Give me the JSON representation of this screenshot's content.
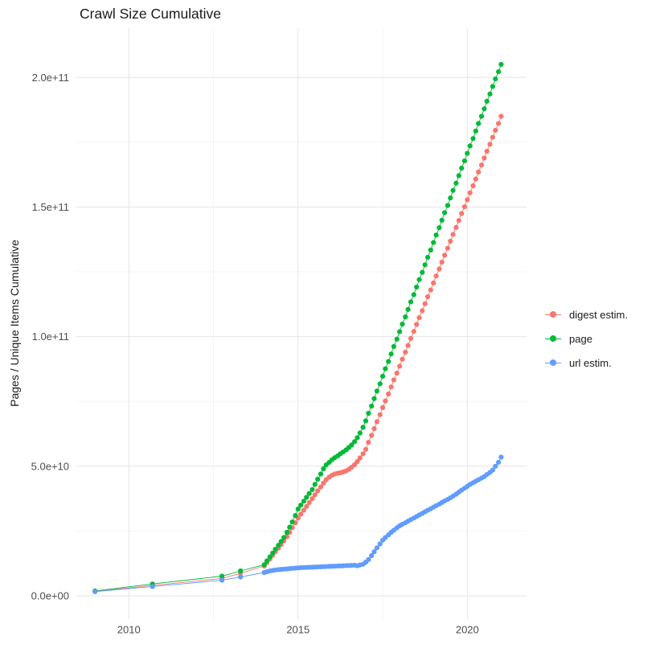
{
  "title": "Crawl Size Cumulative",
  "axes": {
    "y_label": "Pages / Unique Items Cumulative",
    "y_ticks": [
      "0.0e+00",
      "5.0e+10",
      "1.0e+11",
      "1.5e+11",
      "2.0e+11"
    ],
    "x_ticks": [
      "2010",
      "2015",
      "2020"
    ]
  },
  "legend": {
    "position": "right",
    "items": [
      {
        "label": "digest estim.",
        "color": "#F8766D"
      },
      {
        "label": "page",
        "color": "#00BA38"
      },
      {
        "label": "url estim.",
        "color": "#619CFF"
      }
    ]
  },
  "chart_data": {
    "type": "scatter",
    "title": "Crawl Size Cumulative",
    "xlabel": "",
    "ylabel": "Pages / Unique Items Cumulative",
    "y_unit": "values in billions (1e9) of pages / unique items",
    "xlim": [
      2008.45,
      2021.75
    ],
    "ylim": [
      -9,
      219
    ],
    "grid": {
      "x_major": [
        2010,
        2015,
        2020
      ],
      "x_minor": [
        2012.5,
        2017.5
      ],
      "y_major": [
        0,
        50,
        100,
        150,
        200
      ],
      "y_minor": [
        25,
        75,
        125,
        175
      ]
    },
    "x": [
      2009,
      2010.7,
      2012.75,
      2013.3,
      2014,
      2014.08,
      2014.17,
      2014.25,
      2014.33,
      2014.42,
      2014.5,
      2014.58,
      2014.67,
      2014.75,
      2014.83,
      2014.92,
      2015,
      2015.08,
      2015.17,
      2015.25,
      2015.33,
      2015.42,
      2015.5,
      2015.58,
      2015.67,
      2015.75,
      2015.83,
      2015.92,
      2016,
      2016.08,
      2016.17,
      2016.25,
      2016.33,
      2016.42,
      2016.5,
      2016.58,
      2016.67,
      2016.75,
      2016.83,
      2016.92,
      2017,
      2017.08,
      2017.17,
      2017.25,
      2017.33,
      2017.42,
      2017.5,
      2017.58,
      2017.67,
      2017.75,
      2017.83,
      2017.92,
      2018,
      2018.08,
      2018.17,
      2018.25,
      2018.33,
      2018.42,
      2018.5,
      2018.58,
      2018.67,
      2018.75,
      2018.83,
      2018.92,
      2019,
      2019.08,
      2019.17,
      2019.25,
      2019.33,
      2019.42,
      2019.5,
      2019.58,
      2019.67,
      2019.75,
      2019.83,
      2019.92,
      2020,
      2020.08,
      2020.17,
      2020.25,
      2020.33,
      2020.42,
      2020.5,
      2020.58,
      2020.67,
      2020.75,
      2020.83,
      2020.92,
      2021
    ],
    "series": [
      {
        "id": "digest-estim",
        "name": "digest estim.",
        "color": "#F8766D",
        "y": [
          1.7,
          4.0,
          6.7,
          8.7,
          11.5,
          12.8,
          14.2,
          15.6,
          17,
          18.4,
          19.8,
          21.2,
          22.8,
          24.5,
          26.3,
          28.2,
          30,
          31.5,
          33,
          34.5,
          36,
          37.5,
          39,
          40.5,
          42,
          43.5,
          44.8,
          45.8,
          46.5,
          47,
          47.3,
          47.5,
          47.8,
          48.2,
          48.8,
          49.6,
          50.6,
          51.8,
          53.2,
          54.8,
          56.5,
          59.2,
          61.9,
          64.5,
          67.2,
          69.9,
          72.6,
          75.2,
          77.9,
          80.6,
          83.3,
          85.9,
          88.6,
          91.3,
          94,
          96.6,
          99.3,
          102,
          104.7,
          107.3,
          110,
          112.7,
          115.4,
          118,
          120.7,
          123.4,
          126.1,
          128.7,
          131.4,
          134.1,
          136.8,
          139.4,
          142.1,
          144.8,
          147.5,
          150.1,
          152.8,
          155.5,
          158.2,
          160.8,
          163.5,
          166.2,
          168.9,
          171.5,
          174.2,
          176.9,
          179.6,
          182.2,
          185
        ]
      },
      {
        "id": "page",
        "name": "page",
        "color": "#00BA38",
        "y": [
          1.9,
          4.6,
          7.6,
          9.6,
          12,
          13.5,
          15,
          16.5,
          18,
          19.5,
          21,
          22.5,
          24.5,
          26.5,
          28.5,
          31,
          33.5,
          35,
          36.5,
          38,
          39.5,
          41,
          43,
          45,
          47,
          49,
          50.5,
          51.5,
          52.5,
          53.3,
          54,
          54.8,
          55.5,
          56.3,
          57.2,
          58.2,
          59.5,
          61,
          62.8,
          65,
          67.5,
          70.4,
          73.2,
          76.1,
          79,
          81.8,
          84.7,
          87.6,
          90.4,
          93.3,
          96.2,
          99,
          101.9,
          104.8,
          107.6,
          110.5,
          113.4,
          116.2,
          119.1,
          122,
          124.8,
          127.7,
          130.6,
          133.4,
          136.3,
          139.2,
          142,
          144.9,
          147.8,
          150.6,
          153.5,
          156.4,
          159.2,
          162.1,
          165,
          167.8,
          170.7,
          173.6,
          176.4,
          179.3,
          182.2,
          185,
          187.9,
          190.8,
          193.6,
          196.5,
          199.4,
          202.2,
          205
        ]
      },
      {
        "id": "url-estim",
        "name": "url estim.",
        "color": "#619CFF",
        "y": [
          1.6,
          3.6,
          6.0,
          7.3,
          9,
          9.3,
          9.6,
          9.8,
          10,
          10.1,
          10.2,
          10.3,
          10.4,
          10.5,
          10.6,
          10.7,
          10.8,
          10.85,
          10.9,
          10.95,
          11,
          11.05,
          11.1,
          11.15,
          11.2,
          11.25,
          11.3,
          11.35,
          11.4,
          11.45,
          11.5,
          11.55,
          11.6,
          11.65,
          11.7,
          11.75,
          11.8,
          11.6,
          11.9,
          12.2,
          13,
          14,
          15.5,
          17,
          18.5,
          20,
          21.5,
          22.5,
          23.5,
          24.5,
          25.3,
          26.2,
          27,
          27.6,
          28.2,
          28.8,
          29.4,
          30,
          30.6,
          31.2,
          31.8,
          32.4,
          33,
          33.6,
          34.2,
          34.8,
          35.4,
          36,
          36.6,
          37.2,
          37.8,
          38.5,
          39.2,
          40,
          40.8,
          41.5,
          42.2,
          43,
          43.6,
          44.2,
          44.8,
          45.4,
          46,
          46.8,
          47.6,
          48.5,
          50,
          51.5,
          53.5
        ]
      }
    ]
  }
}
